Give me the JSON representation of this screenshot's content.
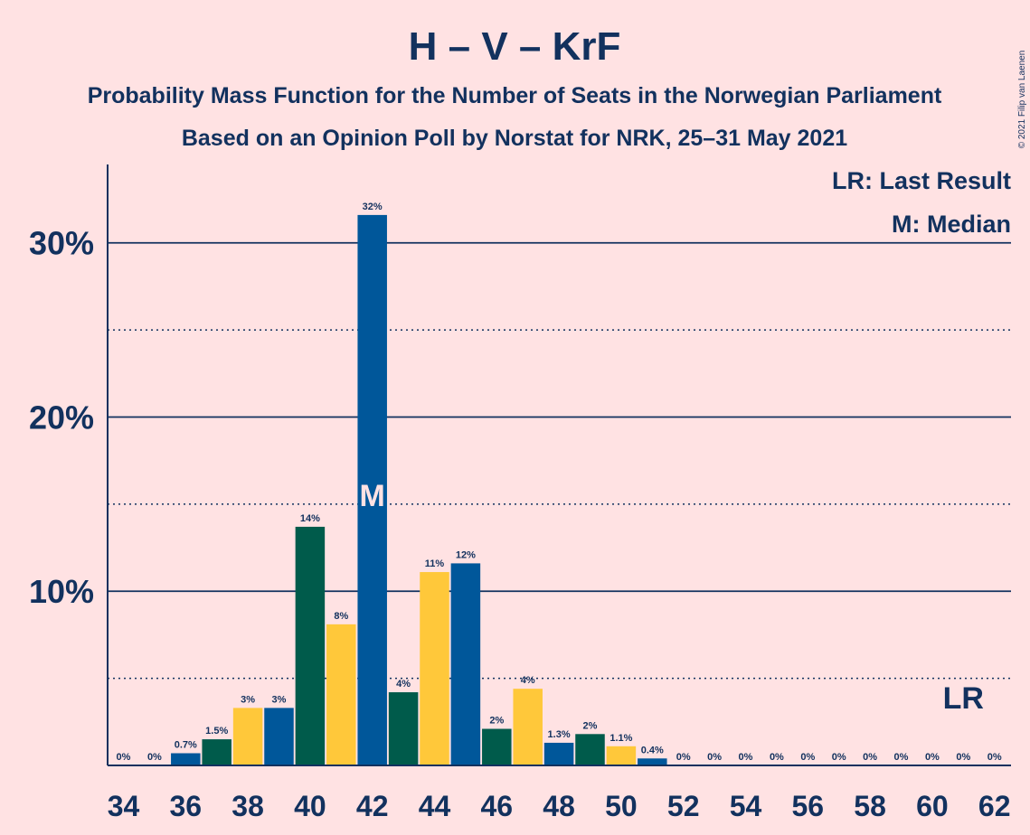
{
  "title": "H – V – KrF",
  "subtitle1": "Probability Mass Function for the Number of Seats in the Norwegian Parliament",
  "subtitle2": "Based on an Opinion Poll by Norstat for NRK, 25–31 May 2021",
  "copyright": "© 2021 Filip van Laenen",
  "legend": {
    "lr": "LR: Last Result",
    "median": "M: Median"
  },
  "lr_marker": {
    "label": "LR",
    "seats": 61
  },
  "median_marker": {
    "label": "M",
    "seats": 42
  },
  "colors": {
    "background": "#FFE2E3",
    "text": "#12315E",
    "cycle": [
      "#005B4B",
      "#FFC83A",
      "#00579A"
    ]
  },
  "chart_data": {
    "type": "bar",
    "ylim": [
      0,
      34.5
    ],
    "yticks": [
      10,
      20,
      30
    ],
    "ytick_labels": [
      "10%",
      "20%",
      "30%"
    ],
    "minor_gridlines": [
      5,
      15,
      25
    ],
    "xtick_labels": [
      "34",
      "36",
      "38",
      "40",
      "42",
      "44",
      "46",
      "48",
      "50",
      "52",
      "54",
      "56",
      "58",
      "60",
      "62"
    ],
    "x": [
      34,
      35,
      36,
      37,
      38,
      39,
      40,
      41,
      42,
      43,
      44,
      45,
      46,
      47,
      48,
      49,
      50,
      51,
      52,
      53,
      54,
      55,
      56,
      57,
      58,
      59,
      60,
      61,
      62
    ],
    "values": [
      0,
      0,
      0.7,
      1.5,
      3.3,
      3.3,
      13.7,
      8.1,
      31.6,
      4.2,
      11.1,
      11.6,
      2.1,
      4.4,
      1.3,
      1.8,
      1.1,
      0.4,
      0,
      0,
      0,
      0,
      0,
      0,
      0,
      0,
      0,
      0,
      0
    ],
    "labels": [
      "0%",
      "0%",
      "0.7%",
      "1.5%",
      "3%",
      "3%",
      "14%",
      "8%",
      "32%",
      "4%",
      "11%",
      "12%",
      "2%",
      "4%",
      "1.3%",
      "2%",
      "1.1%",
      "0.4%",
      "0%",
      "0%",
      "0%",
      "0%",
      "0%",
      "0%",
      "0%",
      "0%",
      "0%",
      "0%",
      "0%"
    ],
    "colors": [
      "#005B4B",
      "#FFC83A",
      "#00579A",
      "#005B4B",
      "#FFC83A",
      "#00579A",
      "#005B4B",
      "#FFC83A",
      "#00579A",
      "#005B4B",
      "#FFC83A",
      "#00579A",
      "#005B4B",
      "#FFC83A",
      "#00579A",
      "#005B4B",
      "#FFC83A",
      "#00579A",
      "#005B4B",
      "#FFC83A",
      "#00579A",
      "#005B4B",
      "#FFC83A",
      "#00579A",
      "#005B4B",
      "#FFC83A",
      "#00579A",
      "#005B4B",
      "#FFC83A"
    ]
  }
}
